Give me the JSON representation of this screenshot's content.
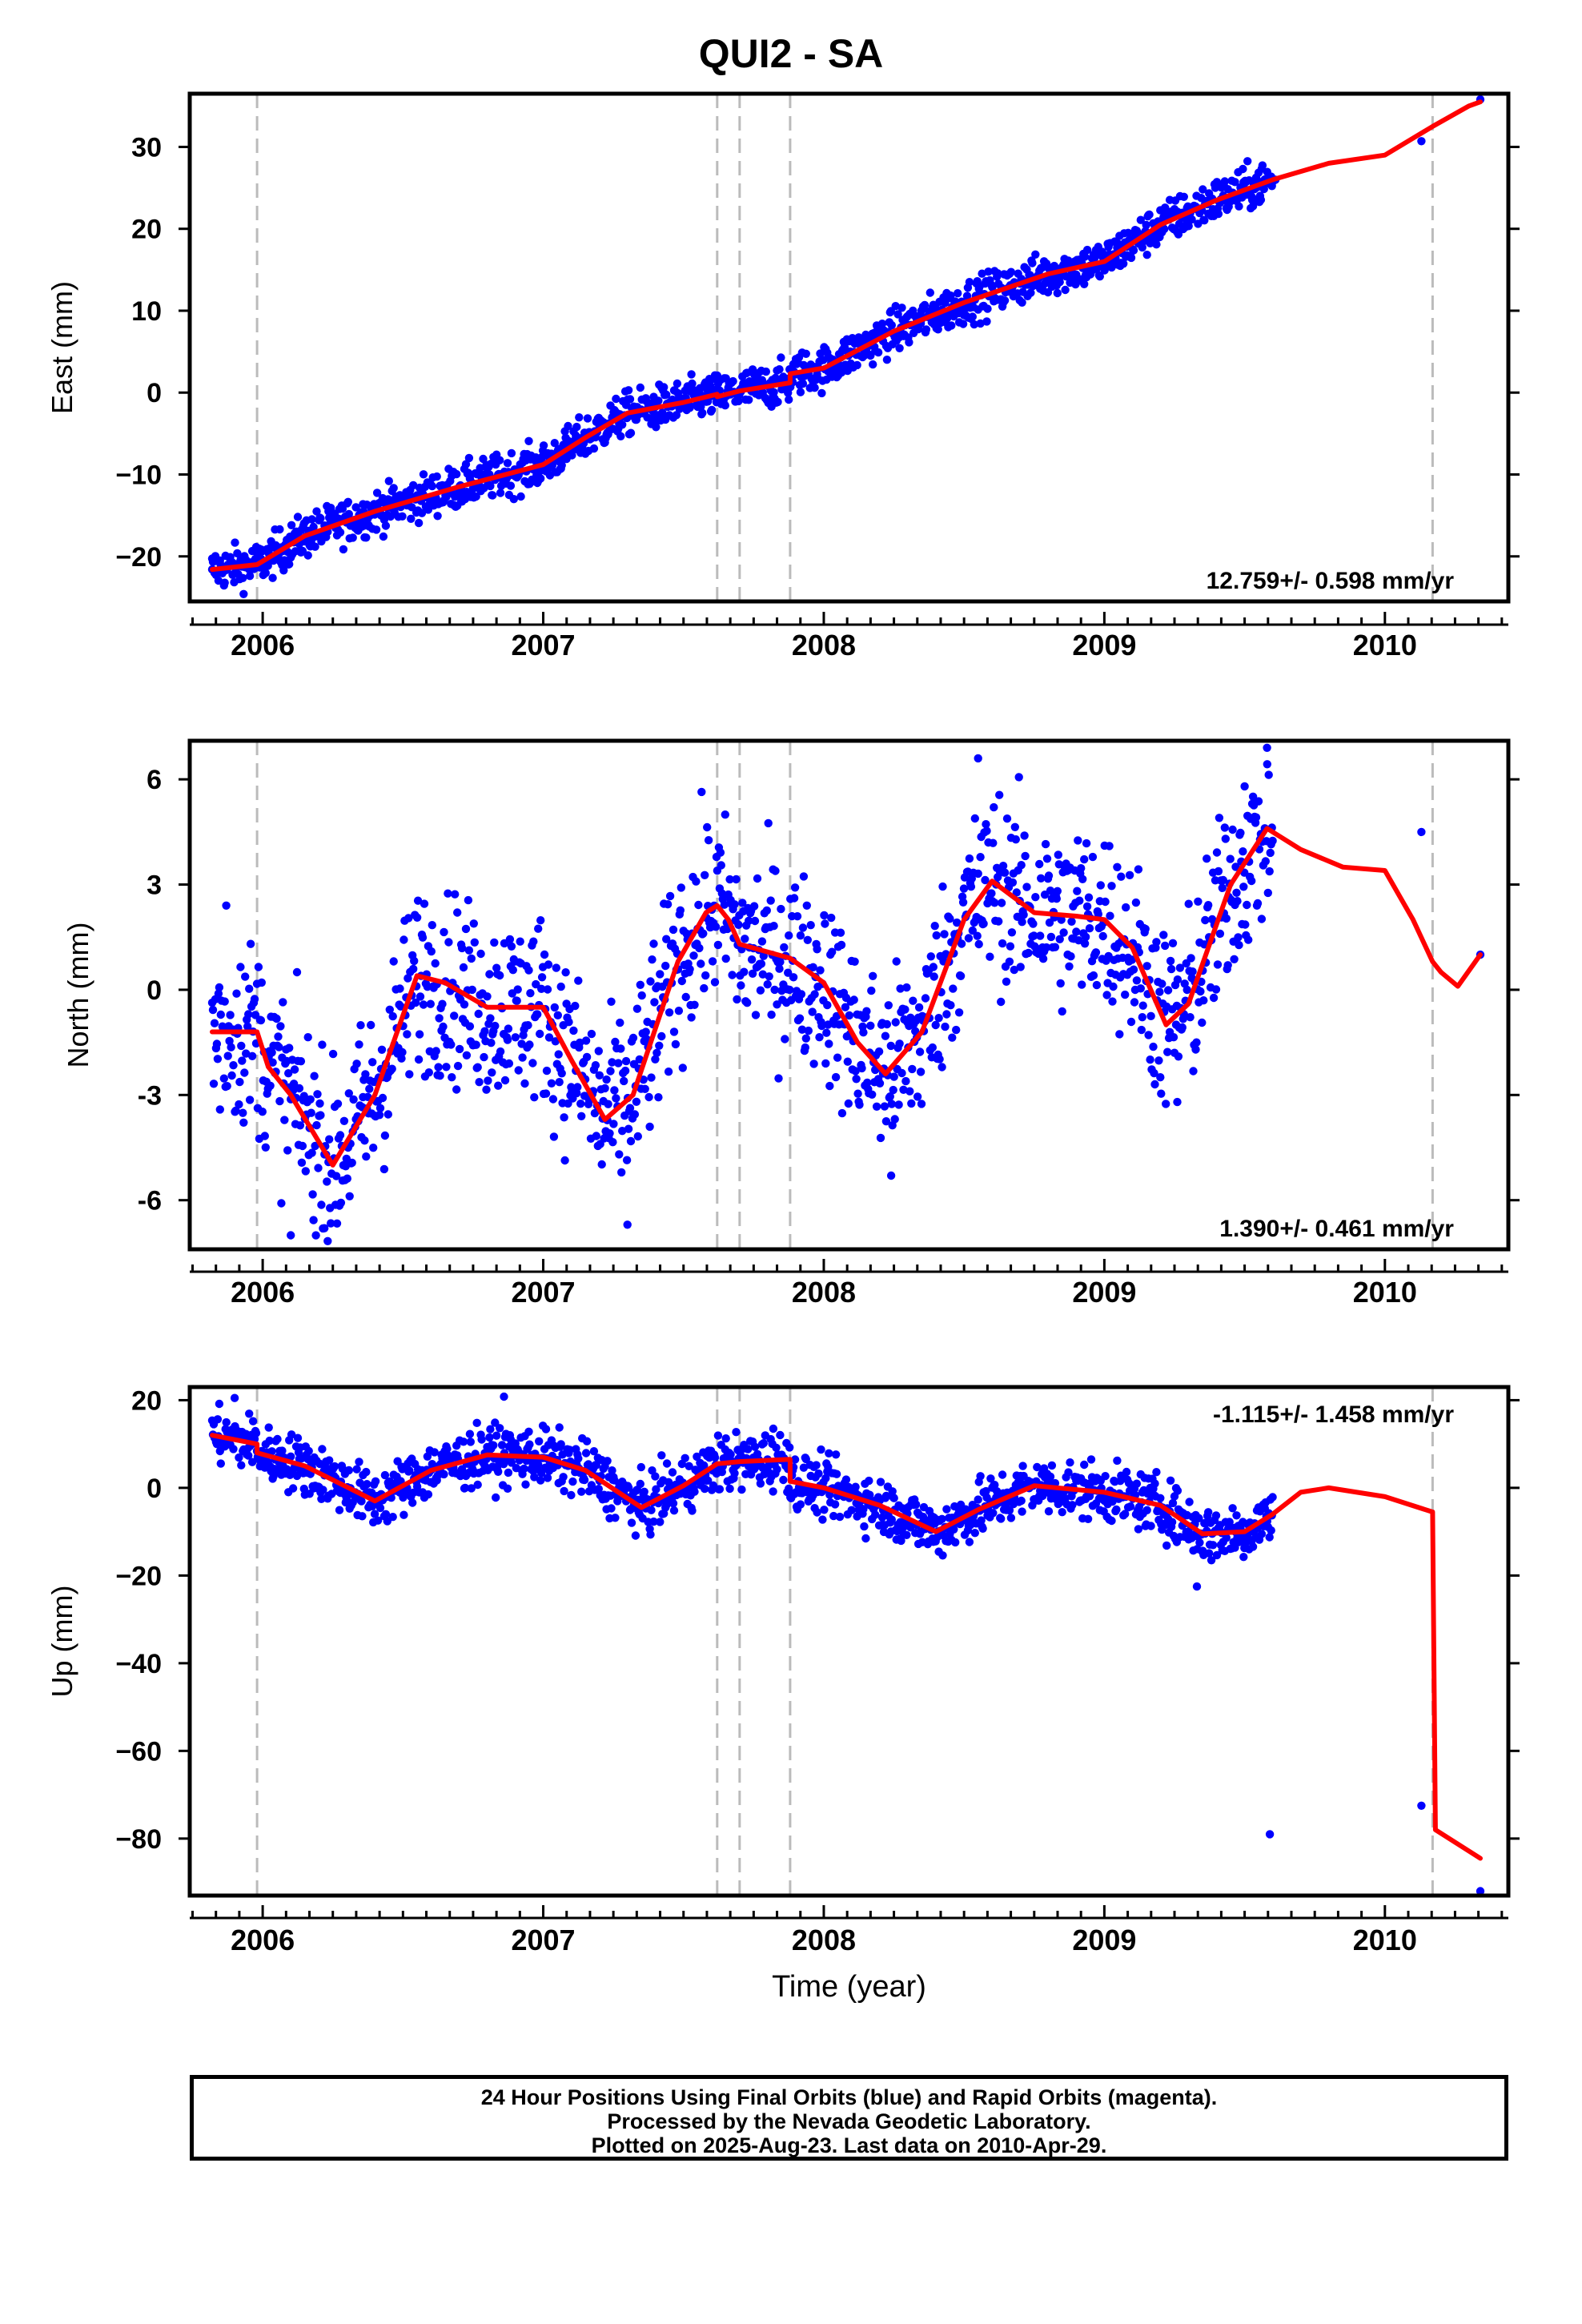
{
  "title": "QUI2 - SA",
  "colors": {
    "data_points": "#0000ff",
    "model_line": "#ff0000",
    "break_lines": "#bbbbbb",
    "axes": "#000000"
  },
  "chart_data": [
    {
      "type": "scatter",
      "ylabel": "East (mm)",
      "xlim": [
        2005.74,
        2010.44
      ],
      "ylim": [
        -25.5,
        36.5
      ],
      "x_ticks": [
        2006,
        2007,
        2008,
        2009,
        2010
      ],
      "y_ticks": [
        -20,
        -10,
        0,
        10,
        20,
        30
      ],
      "y_tick_labels": [
        "−20",
        "−10",
        "0",
        "10",
        "20",
        "30"
      ],
      "grid": false,
      "rate_annotation": "12.759+/- 0.598 mm/yr",
      "annotation_position": "bottom-right",
      "breaks": [
        2005.98,
        2007.62,
        2007.7,
        2007.88,
        2010.17
      ],
      "series": [
        {
          "type": "line",
          "trend": [
            [
              2005.82,
              -21.6
            ],
            [
              2005.98,
              -21.0
            ],
            [
              2006.15,
              -17.5
            ],
            [
              2006.4,
              -14.5
            ],
            [
              2006.7,
              -11.5
            ],
            [
              2007.0,
              -8.8
            ],
            [
              2007.15,
              -5.5
            ],
            [
              2007.3,
              -2.5
            ],
            [
              2007.5,
              -1.2
            ],
            [
              2007.62,
              -0.2
            ],
            [
              2007.62,
              -0.5
            ],
            [
              2007.7,
              0.2
            ],
            [
              2007.88,
              1.2
            ],
            [
              2007.88,
              2.3
            ],
            [
              2008.0,
              3.0
            ],
            [
              2008.25,
              7.5
            ],
            [
              2008.5,
              11.0
            ],
            [
              2008.8,
              14.5
            ],
            [
              2009.0,
              16.0
            ],
            [
              2009.2,
              20.5
            ],
            [
              2009.4,
              23.5
            ],
            [
              2009.6,
              26.0
            ],
            [
              2009.8,
              28.0
            ],
            [
              2010.0,
              29.0
            ],
            [
              2010.17,
              32.5
            ],
            [
              2010.3,
              35.0
            ],
            [
              2010.34,
              35.5
            ]
          ]
        },
        {
          "type": "scatter",
          "band_half_width": 1.3,
          "trend_sampled": "trend",
          "points": [
            [
              2005.82,
              -21.6
            ],
            [
              2009.61,
              26.0
            ],
            [
              2010.13,
              30.7
            ],
            [
              2010.34,
              35.8
            ]
          ]
        }
      ]
    },
    {
      "type": "scatter",
      "ylabel": "North (mm)",
      "xlim": [
        2005.74,
        2010.44
      ],
      "ylim": [
        -7.4,
        7.1
      ],
      "x_ticks": [
        2006,
        2007,
        2008,
        2009,
        2010
      ],
      "y_ticks": [
        -6,
        -3,
        0,
        3,
        6
      ],
      "y_tick_labels": [
        "-6",
        "-3",
        "0",
        "3",
        "6"
      ],
      "grid": false,
      "rate_annotation": "1.390+/- 0.461 mm/yr",
      "annotation_position": "bottom-right",
      "breaks": [
        2005.98,
        2007.62,
        2007.7,
        2007.88,
        2010.17
      ],
      "series": [
        {
          "type": "line",
          "trend": [
            [
              2005.82,
              -1.2
            ],
            [
              2005.98,
              -1.2
            ],
            [
              2006.02,
              -2.2
            ],
            [
              2006.1,
              -3.0
            ],
            [
              2006.25,
              -5.0
            ],
            [
              2006.4,
              -3.0
            ],
            [
              2006.55,
              0.4
            ],
            [
              2006.65,
              0.2
            ],
            [
              2006.8,
              -0.5
            ],
            [
              2007.0,
              -0.5
            ],
            [
              2007.1,
              -2.0
            ],
            [
              2007.22,
              -3.7
            ],
            [
              2007.32,
              -3.0
            ],
            [
              2007.48,
              0.8
            ],
            [
              2007.58,
              2.2
            ],
            [
              2007.62,
              2.4
            ],
            [
              2007.66,
              2.0
            ],
            [
              2007.7,
              1.3
            ],
            [
              2007.88,
              0.9
            ],
            [
              2008.0,
              0.2
            ],
            [
              2008.12,
              -1.5
            ],
            [
              2008.22,
              -2.4
            ],
            [
              2008.35,
              -1.2
            ],
            [
              2008.5,
              2.0
            ],
            [
              2008.6,
              3.1
            ],
            [
              2008.75,
              2.2
            ],
            [
              2008.9,
              2.1
            ],
            [
              2009.0,
              2.0
            ],
            [
              2009.1,
              1.2
            ],
            [
              2009.22,
              -1.0
            ],
            [
              2009.3,
              -0.4
            ],
            [
              2009.45,
              3.0
            ],
            [
              2009.58,
              4.6
            ],
            [
              2009.7,
              4.0
            ],
            [
              2009.85,
              3.5
            ],
            [
              2010.0,
              3.4
            ],
            [
              2010.1,
              2.0
            ],
            [
              2010.17,
              0.8
            ],
            [
              2010.2,
              0.5
            ],
            [
              2010.26,
              0.1
            ],
            [
              2010.34,
              1.0
            ]
          ]
        },
        {
          "type": "scatter",
          "band_half_width": 1.3,
          "points": [
            [
              2005.87,
              2.4
            ],
            [
              2006.22,
              -6.8
            ],
            [
              2006.1,
              -7.0
            ],
            [
              2007.3,
              -6.7
            ],
            [
              2008.55,
              6.6
            ],
            [
              2009.58,
              6.9
            ],
            [
              2009.5,
              5.8
            ],
            [
              2010.13,
              4.5
            ],
            [
              2010.34,
              1.0
            ],
            [
              2009.26,
              -3.2
            ],
            [
              2008.24,
              -5.3
            ]
          ]
        }
      ]
    },
    {
      "type": "scatter",
      "ylabel": "Up (mm)",
      "xlabel": "Time (year)",
      "xlim": [
        2005.74,
        2010.44
      ],
      "ylim": [
        -93,
        23
      ],
      "x_ticks": [
        2006,
        2007,
        2008,
        2009,
        2010
      ],
      "y_ticks": [
        -80,
        -60,
        -40,
        -20,
        0,
        20
      ],
      "y_tick_labels": [
        "−80",
        "−60",
        "−40",
        "−20",
        "0",
        "20"
      ],
      "grid": false,
      "rate_annotation": "-1.115+/- 1.458 mm/yr",
      "annotation_position": "top-right",
      "breaks": [
        2005.98,
        2007.62,
        2007.7,
        2007.88,
        2010.17
      ],
      "series": [
        {
          "type": "line",
          "trend": [
            [
              2005.82,
              12.0
            ],
            [
              2005.98,
              10.0
            ],
            [
              2005.98,
              8.0
            ],
            [
              2006.15,
              5.0
            ],
            [
              2006.4,
              -3.0
            ],
            [
              2006.6,
              4.0
            ],
            [
              2006.8,
              7.5
            ],
            [
              2007.0,
              7.0
            ],
            [
              2007.15,
              4.0
            ],
            [
              2007.35,
              -4.5
            ],
            [
              2007.5,
              0.5
            ],
            [
              2007.62,
              5.5
            ],
            [
              2007.7,
              6.0
            ],
            [
              2007.88,
              6.5
            ],
            [
              2007.88,
              1.5
            ],
            [
              2008.0,
              0.0
            ],
            [
              2008.2,
              -4.0
            ],
            [
              2008.4,
              -10.0
            ],
            [
              2008.55,
              -5.0
            ],
            [
              2008.75,
              0.5
            ],
            [
              2009.0,
              -1.0
            ],
            [
              2009.2,
              -4.0
            ],
            [
              2009.35,
              -10.5
            ],
            [
              2009.5,
              -10.0
            ],
            [
              2009.6,
              -6.0
            ],
            [
              2009.7,
              -1.0
            ],
            [
              2009.8,
              0.0
            ],
            [
              2010.0,
              -2.0
            ],
            [
              2010.17,
              -5.5
            ],
            [
              2010.18,
              -78.0
            ],
            [
              2010.34,
              -84.5
            ]
          ]
        },
        {
          "type": "scatter",
          "band_half_width": 3.2,
          "points": [
            [
              2005.9,
              20.5
            ],
            [
              2006.86,
              20.8
            ],
            [
              2007.82,
              13.5
            ],
            [
              2009.33,
              -22.5
            ],
            [
              2009.59,
              -79.0
            ],
            [
              2010.13,
              -72.5
            ],
            [
              2010.34,
              -92.0
            ]
          ]
        }
      ]
    }
  ],
  "footer": {
    "line1": "24 Hour Positions Using Final Orbits (blue) and Rapid Orbits (magenta).",
    "line2": "Processed by the Nevada Geodetic Laboratory.",
    "line3": "Plotted on 2025-Aug-23. Last data on 2010-Apr-29."
  }
}
